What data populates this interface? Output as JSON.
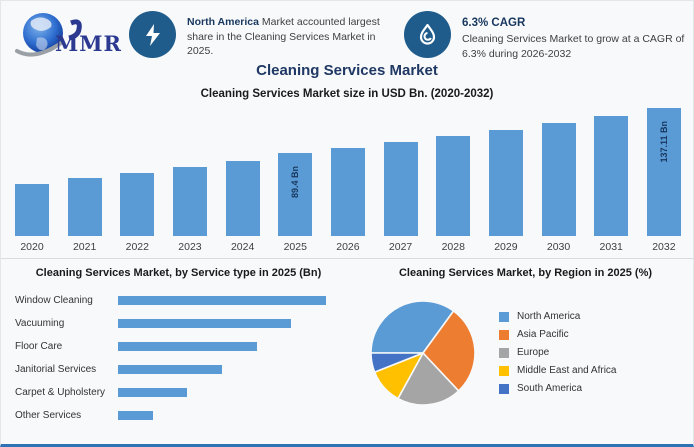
{
  "logo": {
    "text": "MMR"
  },
  "callouts": [
    {
      "icon": "lightning-icon",
      "bold": "North America",
      "rest": " Market accounted largest share in the Cleaning Services Market in 2025."
    },
    {
      "icon": "droplet-icon",
      "heading": "6.3% CAGR",
      "body": "Cleaning Services Market to grow at a CAGR of 6.3% during 2026-2032"
    }
  ],
  "main_title": "Cleaning Services Market",
  "colors": {
    "title_navy": "#203864",
    "bar_blue": "#5B9BD5",
    "icon_circle_blue": "#1F5C8B",
    "bottom_border_blue": "#2E74B5",
    "bar_value_label": "#17375E"
  },
  "chart_data": [
    {
      "type": "bar",
      "title": "Cleaning Services Market size in USD Bn. (2020-2032)",
      "categories": [
        "2020",
        "2021",
        "2022",
        "2023",
        "2024",
        "2025",
        "2026",
        "2027",
        "2028",
        "2029",
        "2030",
        "2031",
        "2032"
      ],
      "values": [
        56,
        62,
        68,
        74,
        81,
        89.4,
        95,
        101,
        107.4,
        114.2,
        121.4,
        129,
        137.11
      ],
      "data_labels": [
        "",
        "",
        "",
        "",
        "",
        "89.4 Bn",
        "",
        "",
        "",
        "",
        "",
        "",
        "137.11 Bn"
      ],
      "ylabel": "USD Bn",
      "ylim": [
        0,
        145
      ],
      "grid": false,
      "bar_color": "#5B9BD5"
    },
    {
      "type": "bar",
      "orientation": "horizontal",
      "title": "Cleaning Services Market, by Service type in 2025 (Bn)",
      "categories": [
        "Window Cleaning",
        "Vacuuming",
        "Floor Care",
        "Janitorial Services",
        "Carpet & Upholstery",
        "Other Services"
      ],
      "values": [
        30,
        25,
        20,
        15,
        10,
        5
      ],
      "xlim": [
        0,
        31
      ],
      "grid": false,
      "bar_color": "#5B9BD5"
    },
    {
      "type": "pie",
      "title": "Cleaning Services Market, by Region in 2025 (%)",
      "labels": [
        "North America",
        "Asia Pacific",
        "Europe",
        "Middle East and Africa",
        "South America"
      ],
      "values": [
        35,
        28,
        20,
        11,
        6
      ],
      "colors": [
        "#5B9BD5",
        "#ED7D31",
        "#A5A5A5",
        "#FFC000",
        "#4472C4"
      ],
      "start_angle_deg": -90,
      "legend_position": "right"
    }
  ]
}
